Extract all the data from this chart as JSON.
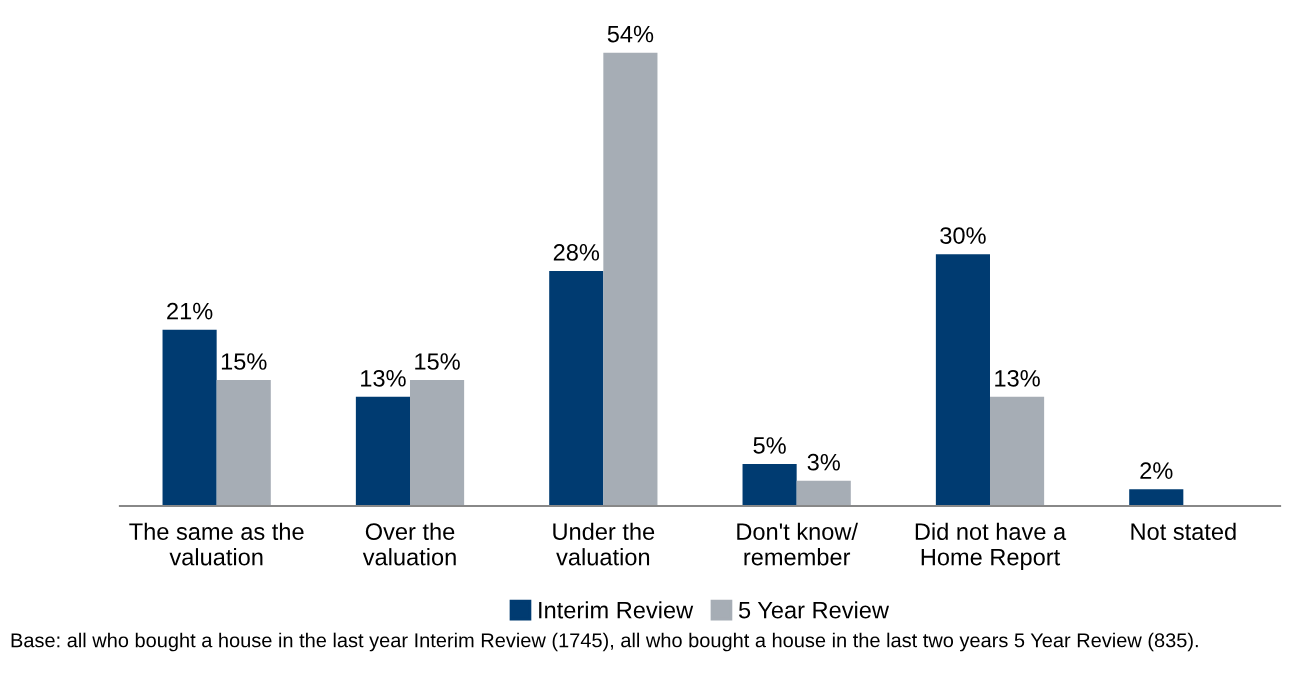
{
  "chart_data": {
    "type": "bar",
    "categories": [
      "The same as the\nvaluation",
      "Over the\nvaluation",
      "Under the\nvaluation",
      "Don't know/\nremember",
      "Did not have a\nHome Report",
      "Not stated"
    ],
    "series": [
      {
        "name": "Interim Review",
        "color": "#003b71",
        "values": [
          21,
          13,
          28,
          5,
          30,
          2
        ],
        "value_labels": [
          "21%",
          "13%",
          "28%",
          "5%",
          "30%",
          "2%"
        ]
      },
      {
        "name": "5 Year Review",
        "color": "#a6adb5",
        "values": [
          15,
          15,
          54,
          3,
          13,
          null
        ],
        "value_labels": [
          "15%",
          "15%",
          "54%",
          "3%",
          "13%",
          null
        ]
      }
    ],
    "legend": "bottom",
    "grid": false,
    "annotations": [
      "Base: all who bought a house in the last year Interim Review (1745), all who bought a house in the last two years 5 Year Review (835)."
    ]
  }
}
